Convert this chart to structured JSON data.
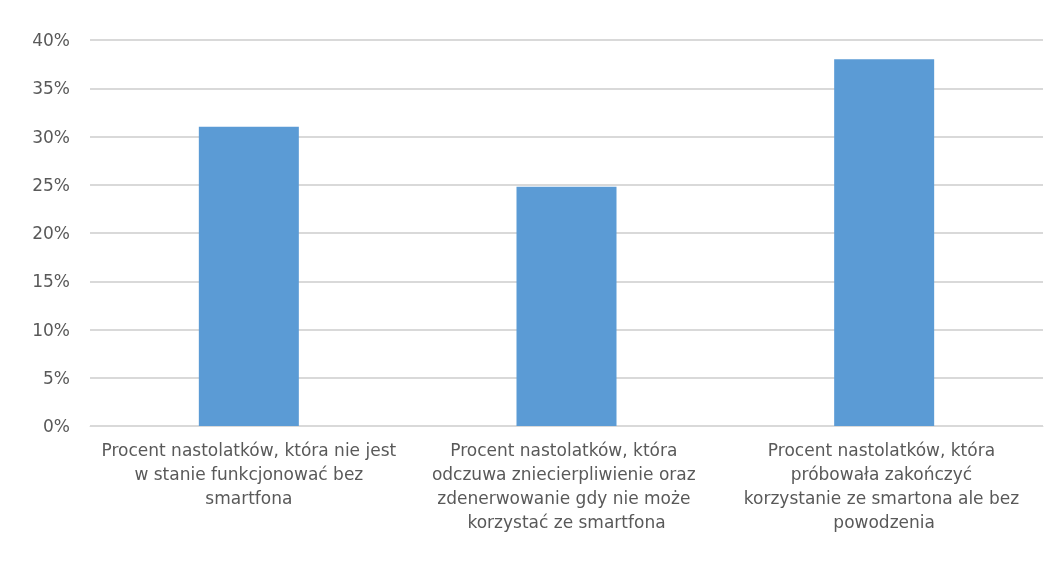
{
  "chart_data": {
    "type": "bar",
    "categories": [
      "Procent nastolatków, która nie jest w stanie funkcjonować bez smartfona",
      "Procent nastolatków, która odczuwa zniecierpliwienie oraz zdenerwowanie gdy nie może korzystać ze smartfona",
      "Procent nastolatków, która próbowała zakończyć korzystanie ze smartona ale bez powodzenia"
    ],
    "values": [
      31,
      24.8,
      38
    ],
    "color": "#5b9bd5",
    "ylim": [
      0,
      40
    ],
    "yticks": [
      {
        "value": 0,
        "label": "0%"
      },
      {
        "value": 5,
        "label": "5%"
      },
      {
        "value": 10,
        "label": "10%"
      },
      {
        "value": 15,
        "label": "15%"
      },
      {
        "value": 20,
        "label": "20%"
      },
      {
        "value": 25,
        "label": "25%"
      },
      {
        "value": 30,
        "label": "30%"
      },
      {
        "value": 35,
        "label": "35%"
      },
      {
        "value": 40,
        "label": "40%"
      }
    ],
    "grid": "y"
  }
}
